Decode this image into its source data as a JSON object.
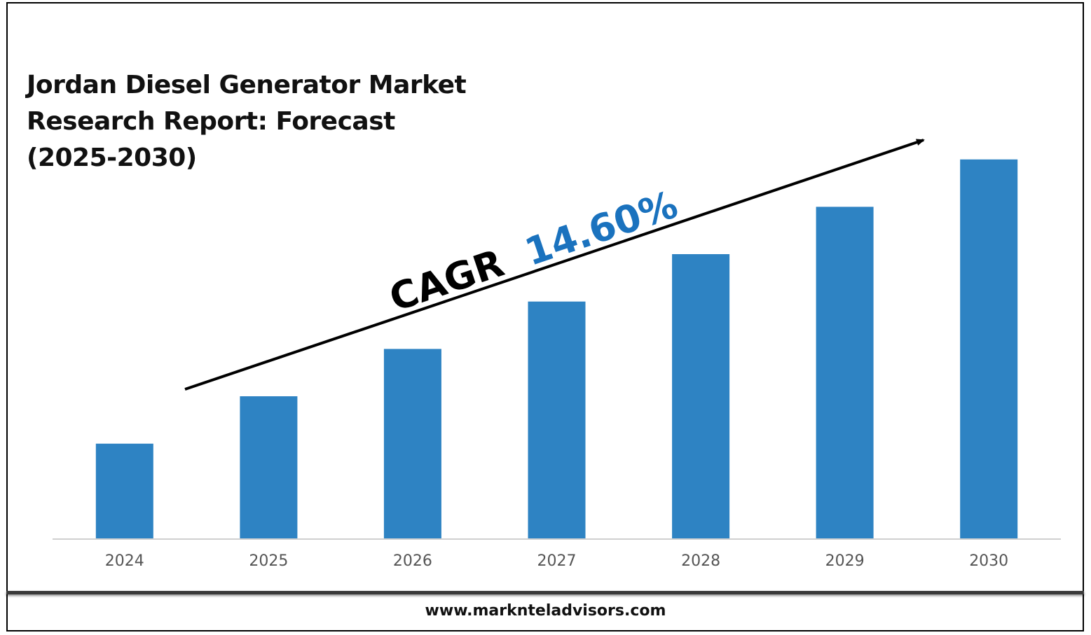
{
  "title_lines": [
    "Jordan Diesel Generator Market",
    "Research Report: Forecast",
    "(2025-2030)"
  ],
  "cagr": {
    "prefix": "CAGR",
    "value": "14.60%"
  },
  "footer": {
    "url": "www.marknteladvisors.com"
  },
  "colors": {
    "bar": "#2E83C3",
    "cagr_value": "#1A72BE",
    "text": "#111111",
    "tick": "#555555"
  },
  "chart_data": {
    "type": "bar",
    "categories": [
      "2024",
      "2025",
      "2026",
      "2027",
      "2028",
      "2029",
      "2030"
    ],
    "series": [
      {
        "values": [
          1.0,
          1.5,
          2.0,
          2.5,
          3.0,
          3.5,
          4.0
        ]
      }
    ],
    "ylim": [
      0,
      4.7
    ],
    "y_axis_visible": false,
    "grid": false,
    "legend": "none",
    "annotation": "CAGR 14.60%"
  }
}
